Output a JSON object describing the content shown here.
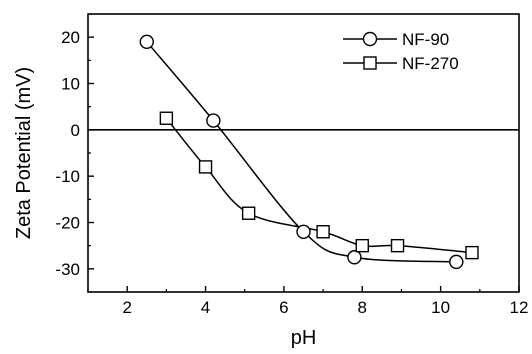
{
  "chart_data": {
    "type": "line",
    "title": "",
    "xlabel": "pH",
    "ylabel": "Zeta Potential (mV)",
    "xlim": [
      1,
      12
    ],
    "ylim": [
      -35,
      25
    ],
    "xticks": [
      2,
      4,
      6,
      8,
      10,
      12
    ],
    "yticks": [
      -30,
      -20,
      -10,
      0,
      10,
      20
    ],
    "grid": false,
    "legend_position": "top-right",
    "reference_line_y": 0,
    "series": [
      {
        "name": "NF-90",
        "marker": "circle",
        "x": [
          2.5,
          4.2,
          6.5,
          7.8,
          10.4
        ],
        "y": [
          19,
          2,
          -22,
          -27.5,
          -28.5
        ]
      },
      {
        "name": "NF-270",
        "marker": "square",
        "x": [
          3.0,
          4.0,
          5.1,
          7.0,
          8.0,
          8.9,
          10.8
        ],
        "y": [
          2.5,
          -8,
          -18,
          -22,
          -25,
          -25,
          -26.5
        ]
      }
    ]
  }
}
